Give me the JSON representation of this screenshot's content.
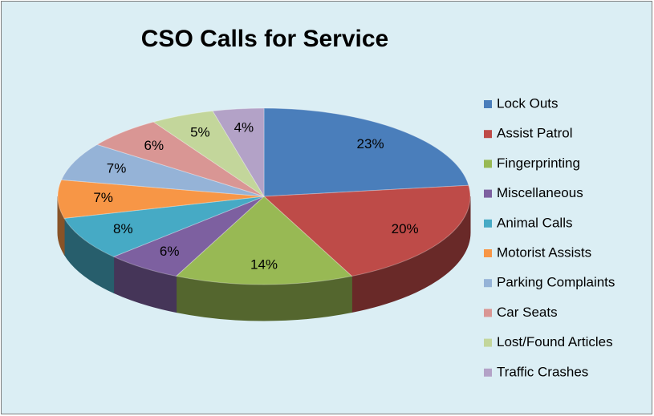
{
  "chart_data": {
    "type": "pie3d",
    "title": "CSO Calls for Service",
    "categories": [
      "Lock Outs",
      "Assist Patrol",
      "Fingerprinting",
      "Miscellaneous",
      "Animal Calls",
      "Motorist Assists",
      "Parking Complaints",
      "Car Seats",
      "Lost/Found Articles",
      "Traffic Crashes"
    ],
    "values": [
      23,
      20,
      14,
      6,
      8,
      7,
      7,
      6,
      5,
      4
    ],
    "value_labels": [
      "23%",
      "20%",
      "14%",
      "6%",
      "8%",
      "7%",
      "7%",
      "6%",
      "5%",
      "4%"
    ],
    "colors": [
      "#4a7ebb",
      "#be4b48",
      "#98b954",
      "#7d60a0",
      "#46aac5",
      "#f79646",
      "#95b3d7",
      "#d99694",
      "#c3d69b",
      "#b3a2c7"
    ],
    "legend": "right"
  }
}
